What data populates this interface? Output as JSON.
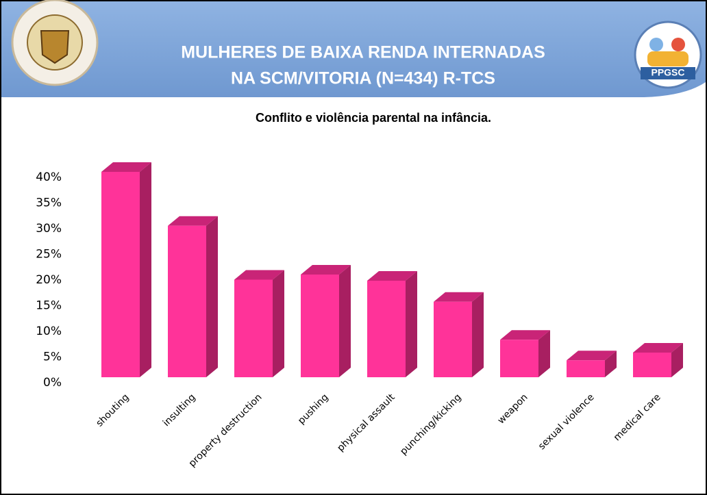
{
  "header": {
    "title_lines": [
      "MULHERES DE BAIXA RENDA INTERNADAS",
      "NA SCM/VITORIA (N=434) R-TCS"
    ],
    "logo_text": "PPGSC"
  },
  "chart_data": {
    "type": "bar3d",
    "title": "Conflito e violência parental na infância.",
    "categories": [
      "shouting",
      "insulting",
      "property destruction",
      "pushing",
      "physical assault",
      "punching/kicking",
      "weapon",
      "sexual violence",
      "medical care"
    ],
    "values": [
      40,
      29.5,
      19,
      20,
      18.8,
      14.7,
      7.3,
      3.3,
      4.8
    ],
    "color": "#ff3399",
    "top_color": "#c92477",
    "side_color": "#a81f61",
    "ylim": [
      0,
      40
    ],
    "yticks": [
      {
        "value": 0,
        "label": "0%"
      },
      {
        "value": 5,
        "label": "5%"
      },
      {
        "value": 10,
        "label": "10%"
      },
      {
        "value": 15,
        "label": "15%"
      },
      {
        "value": 20,
        "label": "20%"
      },
      {
        "value": 25,
        "label": "25%"
      },
      {
        "value": 30,
        "label": "30%"
      },
      {
        "value": 35,
        "label": "35%"
      },
      {
        "value": 40,
        "label": "40%"
      }
    ],
    "grid": false
  }
}
